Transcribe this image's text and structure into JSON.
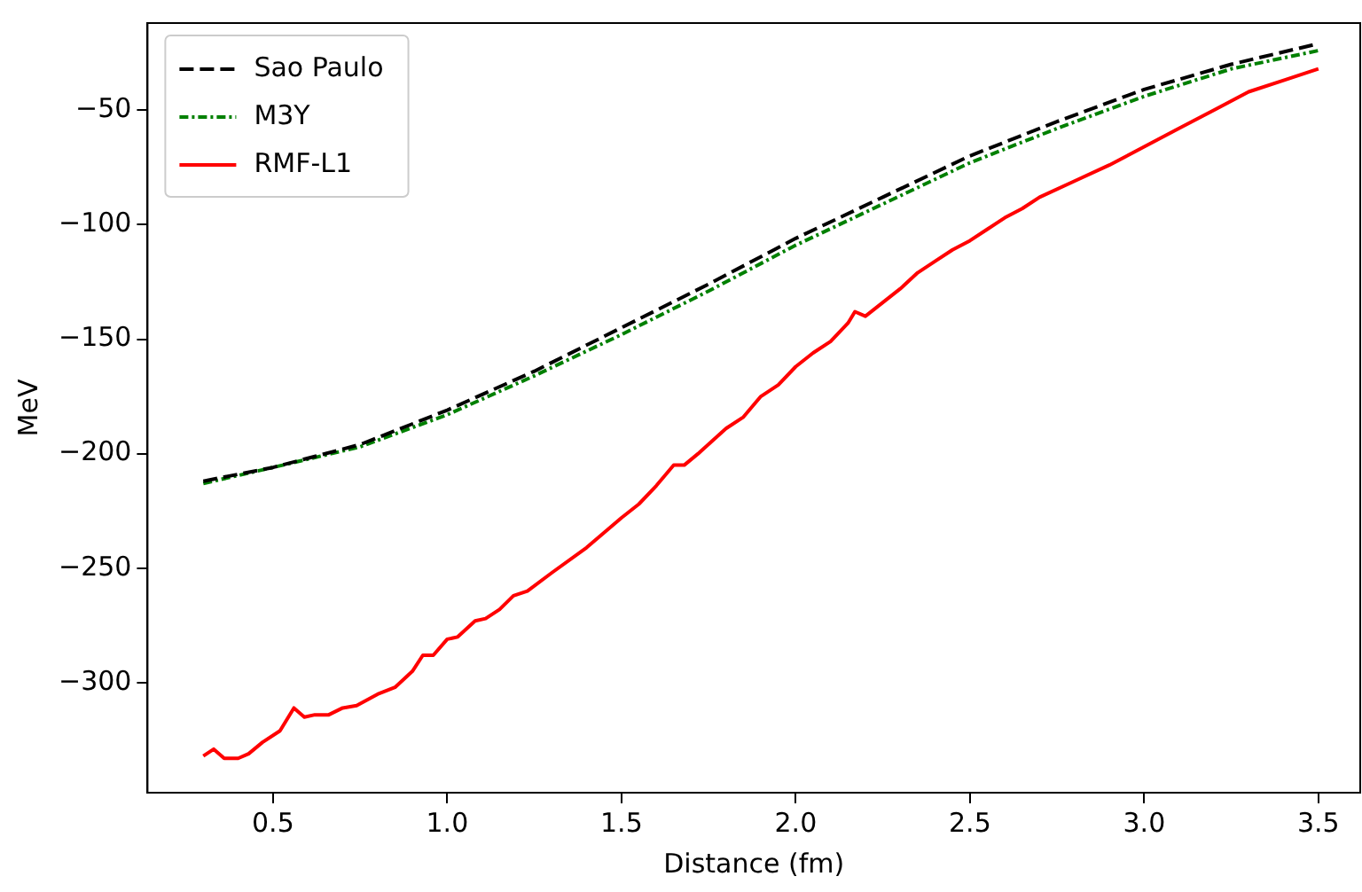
{
  "chart_data": {
    "type": "line",
    "xlabel": "Distance (fm)",
    "ylabel": "MeV",
    "xlim": [
      0.14,
      3.62
    ],
    "ylim": [
      -348,
      -12
    ],
    "xticks": [
      0.5,
      {
        "value": 1,
        "label": "1.0"
      },
      1.5,
      {
        "value": 2,
        "label": "2.0"
      },
      2.5,
      {
        "value": 3,
        "label": "3.0"
      },
      3.5
    ],
    "yticks": [
      -300,
      -250,
      -200,
      -150,
      -100,
      -50
    ],
    "grid": false,
    "legend": "top left",
    "marker": "none",
    "series": [
      {
        "name": "Sao Paulo",
        "color": "#000000",
        "line_style": "dashed",
        "x": [
          0.3,
          0.5,
          0.75,
          1.0,
          1.25,
          1.5,
          1.75,
          2.0,
          2.25,
          2.5,
          2.75,
          3.0,
          3.25,
          3.5
        ],
        "values": [
          -212,
          -206,
          -196,
          -181,
          -164,
          -145,
          -126,
          -106,
          -88,
          -70,
          -55,
          -41,
          -30,
          -21
        ]
      },
      {
        "name": "M3Y",
        "color": "#008000",
        "line_style": "dashdot",
        "x": [
          0.3,
          0.5,
          0.75,
          1.0,
          1.25,
          1.5,
          1.75,
          2.0,
          2.25,
          2.5,
          2.75,
          3.0,
          3.25,
          3.5
        ],
        "values": [
          -213,
          -206,
          -197,
          -183,
          -166,
          -148,
          -129,
          -109,
          -91,
          -73,
          -58,
          -44,
          -32,
          -24
        ]
      },
      {
        "name": "RMF-L1",
        "color": "#ff0000",
        "line_style": "solid",
        "x": [
          0.3,
          0.33,
          0.36,
          0.4,
          0.43,
          0.47,
          0.52,
          0.56,
          0.59,
          0.62,
          0.66,
          0.7,
          0.74,
          0.8,
          0.85,
          0.9,
          0.93,
          0.96,
          1.0,
          1.03,
          1.08,
          1.11,
          1.15,
          1.19,
          1.23,
          1.3,
          1.4,
          1.5,
          1.55,
          1.6,
          1.65,
          1.68,
          1.72,
          1.8,
          1.85,
          1.9,
          1.95,
          2.0,
          2.05,
          2.1,
          2.15,
          2.17,
          2.2,
          2.25,
          2.3,
          2.35,
          2.4,
          2.45,
          2.5,
          2.55,
          2.6,
          2.65,
          2.7,
          2.8,
          2.9,
          3.0,
          3.1,
          3.2,
          3.3,
          3.4,
          3.5
        ],
        "values": [
          -332,
          -329,
          -333,
          -333,
          -331,
          -326,
          -321,
          -311,
          -315,
          -314,
          -314,
          -311,
          -310,
          -305,
          -302,
          -295,
          -288,
          -288,
          -281,
          -280,
          -273,
          -272,
          -268,
          -262,
          -260,
          -252,
          -241,
          -228,
          -222,
          -214,
          -205,
          -205,
          -200,
          -189,
          -184,
          -175,
          -170,
          -162,
          -156,
          -151,
          -143,
          -138,
          -140,
          -134,
          -128,
          -121,
          -116,
          -111,
          -107,
          -102,
          -97,
          -93,
          -88,
          -81,
          -74,
          -66,
          -58,
          -50,
          -42,
          -37,
          -32
        ]
      }
    ]
  }
}
